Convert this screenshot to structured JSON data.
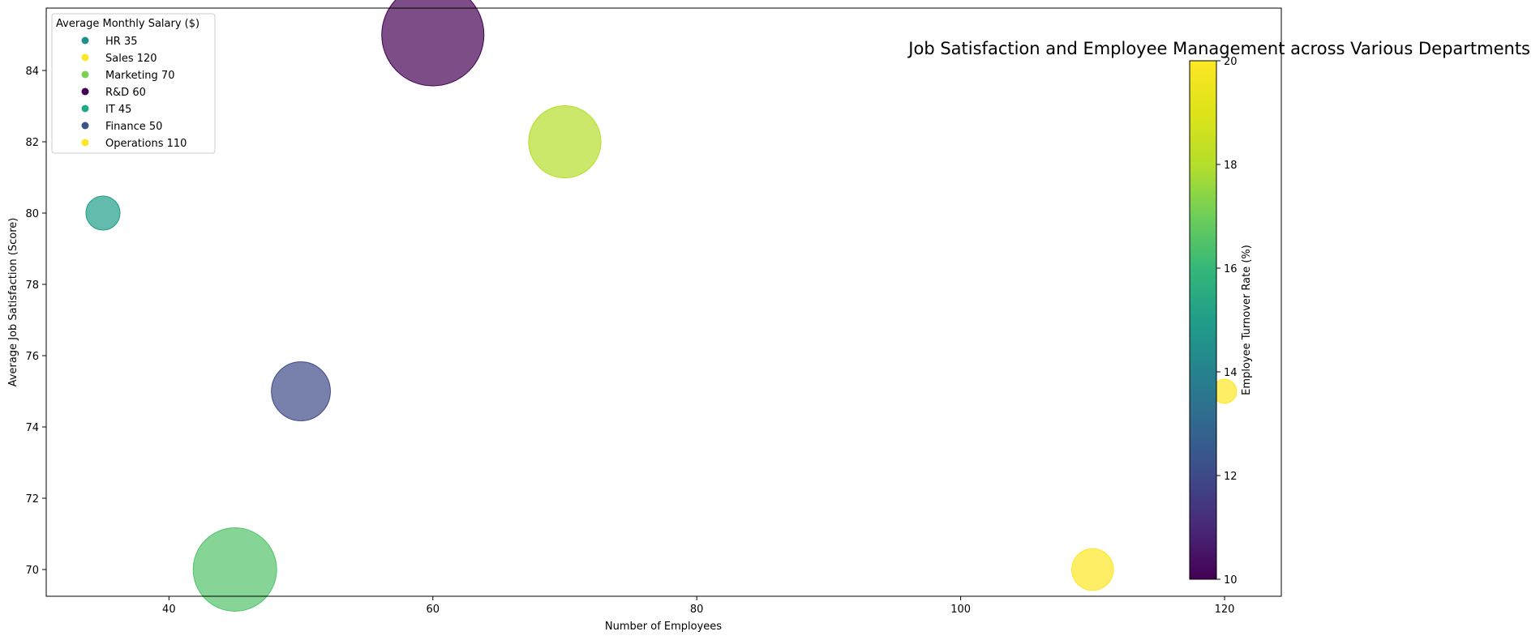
{
  "chart_data": {
    "type": "scatter",
    "title": "Job Satisfaction and Employee Management across Various Departments",
    "xlabel": "Number of Employees",
    "ylabel": "Average Job Satisfaction (Score)",
    "xlim": [
      30.7,
      124.3
    ],
    "ylim": [
      69.25,
      85.75
    ],
    "xticks": [
      40,
      60,
      80,
      100,
      120
    ],
    "yticks": [
      70,
      72,
      74,
      76,
      78,
      80,
      82,
      84
    ],
    "grid": false,
    "colorbar": {
      "label": "Employee Turnover Rate (%)",
      "range": [
        10,
        20
      ],
      "ticks": [
        10,
        12,
        14,
        16,
        18,
        20
      ],
      "colormap": "viridis"
    },
    "legend": {
      "title": "Average Monthly Salary ($)",
      "placement": "top-left",
      "entries": [
        {
          "label": "HR 35",
          "color": "#21908d"
        },
        {
          "label": "Sales 120",
          "color": "#fde725"
        },
        {
          "label": "Marketing 70",
          "color": "#7ad151"
        },
        {
          "label": "R&D 60",
          "color": "#440154"
        },
        {
          "label": "IT 45",
          "color": "#22a884"
        },
        {
          "label": "Finance 50",
          "color": "#3b528b"
        },
        {
          "label": "Operations 110",
          "color": "#fde725"
        }
      ]
    },
    "points": [
      {
        "x": 35,
        "y": 80,
        "turnover": 15,
        "size": 1
      },
      {
        "x": 120,
        "y": 75,
        "turnover": 20,
        "size": 0.5
      },
      {
        "x": 70,
        "y": 82,
        "turnover": 18,
        "size": 4.5
      },
      {
        "x": 60,
        "y": 85,
        "turnover": 10,
        "size": 9
      },
      {
        "x": 45,
        "y": 70,
        "turnover": 16.5,
        "size": 6
      },
      {
        "x": 50,
        "y": 75,
        "turnover": 12,
        "size": 3
      },
      {
        "x": 110,
        "y": 70,
        "turnover": 20,
        "size": 1.5
      }
    ]
  }
}
